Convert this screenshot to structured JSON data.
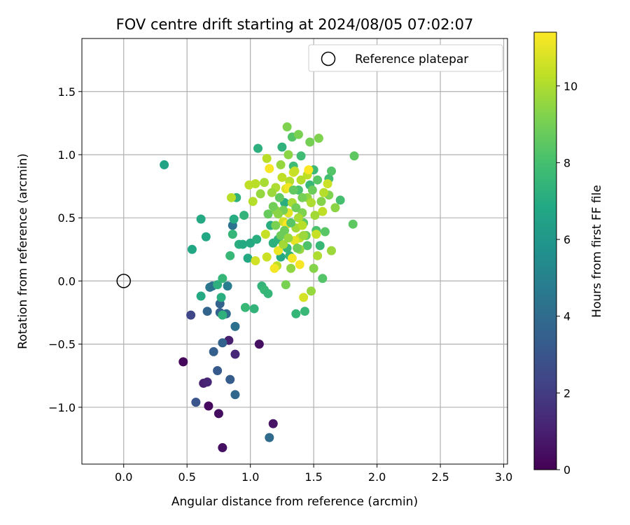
{
  "chart_data": {
    "type": "scatter",
    "title": "FOV centre drift starting at 2024/08/05 07:02:07",
    "xlabel": "Angular distance from reference (arcmin)",
    "ylabel": "Rotation from reference (arcmin)",
    "xlim": [
      -0.33,
      3.03
    ],
    "ylim": [
      -1.45,
      1.92
    ],
    "xticks": [
      0.0,
      0.5,
      1.0,
      1.5,
      2.0,
      2.5,
      3.0
    ],
    "xtick_labels": [
      "0.0",
      "0.5",
      "1.0",
      "1.5",
      "2.0",
      "2.5",
      "3.0"
    ],
    "yticks": [
      -1.0,
      -0.5,
      0.0,
      0.5,
      1.0,
      1.5
    ],
    "ytick_labels": [
      "−1.0",
      "−0.5",
      "0.0",
      "0.5",
      "1.0",
      "1.5"
    ],
    "grid": true,
    "colormap": "viridis",
    "colorbar": {
      "label": "Hours from first FF file",
      "min": 0,
      "max": 11.4,
      "ticks": [
        0,
        2,
        4,
        6,
        8,
        10
      ],
      "tick_labels": [
        "0",
        "2",
        "4",
        "6",
        "8",
        "10"
      ]
    },
    "legend": {
      "position": "top-right",
      "label": "Reference platepar"
    },
    "reference_point": [
      0.0,
      0.0
    ],
    "points": [
      {
        "x": 0.47,
        "y": -0.64,
        "c": 0.2
      },
      {
        "x": 0.67,
        "y": -0.99,
        "c": 0.3
      },
      {
        "x": 0.75,
        "y": -1.05,
        "c": 0.4
      },
      {
        "x": 0.78,
        "y": -1.32,
        "c": 0.5
      },
      {
        "x": 1.18,
        "y": -1.13,
        "c": 0.6
      },
      {
        "x": 1.07,
        "y": -0.5,
        "c": 0.5
      },
      {
        "x": 0.63,
        "y": -0.81,
        "c": 1.0
      },
      {
        "x": 0.66,
        "y": -0.8,
        "c": 1.2
      },
      {
        "x": 0.83,
        "y": -0.47,
        "c": 1.0
      },
      {
        "x": 0.88,
        "y": -0.58,
        "c": 1.3
      },
      {
        "x": 0.53,
        "y": -0.27,
        "c": 2.4
      },
      {
        "x": 0.57,
        "y": -0.96,
        "c": 3.0
      },
      {
        "x": 0.74,
        "y": -0.71,
        "c": 3.2
      },
      {
        "x": 0.71,
        "y": -0.56,
        "c": 3.4
      },
      {
        "x": 0.78,
        "y": -0.49,
        "c": 3.6
      },
      {
        "x": 0.84,
        "y": -0.78,
        "c": 3.3
      },
      {
        "x": 0.88,
        "y": -0.9,
        "c": 3.8
      },
      {
        "x": 1.15,
        "y": -1.24,
        "c": 3.9
      },
      {
        "x": 0.66,
        "y": -0.24,
        "c": 3.7
      },
      {
        "x": 0.76,
        "y": -0.25,
        "c": 3.5
      },
      {
        "x": 0.76,
        "y": -0.18,
        "c": 3.6
      },
      {
        "x": 0.81,
        "y": -0.26,
        "c": 3.9
      },
      {
        "x": 0.88,
        "y": -0.36,
        "c": 4.2
      },
      {
        "x": 0.68,
        "y": -0.05,
        "c": 4.5
      },
      {
        "x": 0.7,
        "y": -0.04,
        "c": 4.4
      },
      {
        "x": 0.82,
        "y": -0.04,
        "c": 4.8
      },
      {
        "x": 0.86,
        "y": 0.44,
        "c": 4.3
      },
      {
        "x": 0.32,
        "y": 0.92,
        "c": 6.6
      },
      {
        "x": 0.54,
        "y": 0.25,
        "c": 6.8
      },
      {
        "x": 0.61,
        "y": 0.49,
        "c": 6.9
      },
      {
        "x": 0.61,
        "y": -0.12,
        "c": 6.9
      },
      {
        "x": 0.65,
        "y": 0.35,
        "c": 6.8
      },
      {
        "x": 0.74,
        "y": -0.03,
        "c": 7.2
      },
      {
        "x": 0.77,
        "y": -0.13,
        "c": 7.1
      },
      {
        "x": 0.78,
        "y": -0.27,
        "c": 7.3
      },
      {
        "x": 0.78,
        "y": 0.02,
        "c": 7.5
      },
      {
        "x": 0.84,
        "y": 0.2,
        "c": 7.6
      },
      {
        "x": 0.86,
        "y": 0.37,
        "c": 7.5
      },
      {
        "x": 0.87,
        "y": 0.49,
        "c": 7.0
      },
      {
        "x": 0.89,
        "y": 0.66,
        "c": 7.3
      },
      {
        "x": 0.91,
        "y": 0.29,
        "c": 7.1
      },
      {
        "x": 0.94,
        "y": 0.29,
        "c": 6.9
      },
      {
        "x": 0.95,
        "y": 0.52,
        "c": 7.4
      },
      {
        "x": 0.96,
        "y": -0.21,
        "c": 7.6
      },
      {
        "x": 0.98,
        "y": 0.18,
        "c": 6.9
      },
      {
        "x": 1.0,
        "y": 0.3,
        "c": 6.9
      },
      {
        "x": 1.03,
        "y": -0.22,
        "c": 7.4
      },
      {
        "x": 1.05,
        "y": 0.33,
        "c": 7.1
      },
      {
        "x": 1.06,
        "y": 1.05,
        "c": 7.2
      },
      {
        "x": 1.09,
        "y": -0.04,
        "c": 7.4
      },
      {
        "x": 1.11,
        "y": -0.07,
        "c": 7.6
      },
      {
        "x": 1.14,
        "y": -0.1,
        "c": 7.5
      },
      {
        "x": 1.16,
        "y": 0.44,
        "c": 7.1
      },
      {
        "x": 1.18,
        "y": 0.3,
        "c": 7.2
      },
      {
        "x": 1.22,
        "y": 0.33,
        "c": 7.3
      },
      {
        "x": 1.24,
        "y": 0.19,
        "c": 6.9
      },
      {
        "x": 1.25,
        "y": 1.06,
        "c": 7.3
      },
      {
        "x": 1.27,
        "y": 0.62,
        "c": 7.1
      },
      {
        "x": 1.29,
        "y": 0.26,
        "c": 7.6
      },
      {
        "x": 1.31,
        "y": 0.2,
        "c": 7.5
      },
      {
        "x": 1.33,
        "y": 1.14,
        "c": 8.3
      },
      {
        "x": 1.34,
        "y": 0.91,
        "c": 7.8
      },
      {
        "x": 1.36,
        "y": -0.26,
        "c": 7.5
      },
      {
        "x": 1.38,
        "y": 0.72,
        "c": 8.1
      },
      {
        "x": 1.4,
        "y": 0.99,
        "c": 7.8
      },
      {
        "x": 1.43,
        "y": -0.24,
        "c": 7.6
      },
      {
        "x": 1.45,
        "y": 0.28,
        "c": 8.2
      },
      {
        "x": 1.47,
        "y": 0.76,
        "c": 7.6
      },
      {
        "x": 1.5,
        "y": 0.88,
        "c": 7.7
      },
      {
        "x": 1.52,
        "y": 0.4,
        "c": 8.1
      },
      {
        "x": 1.55,
        "y": 0.28,
        "c": 7.6
      },
      {
        "x": 1.57,
        "y": 0.02,
        "c": 8.3
      },
      {
        "x": 1.59,
        "y": 0.39,
        "c": 8.4
      },
      {
        "x": 1.62,
        "y": 0.81,
        "c": 7.9
      },
      {
        "x": 1.64,
        "y": 0.87,
        "c": 8.3
      },
      {
        "x": 1.71,
        "y": 0.64,
        "c": 8.0
      },
      {
        "x": 1.81,
        "y": 0.45,
        "c": 8.5
      },
      {
        "x": 1.82,
        "y": 0.99,
        "c": 8.5
      },
      {
        "x": 1.29,
        "y": 1.22,
        "c": 9.2
      },
      {
        "x": 1.38,
        "y": 1.16,
        "c": 9.1
      },
      {
        "x": 1.54,
        "y": 1.13,
        "c": 9.2
      },
      {
        "x": 1.47,
        "y": 1.1,
        "c": 9.0
      },
      {
        "x": 1.3,
        "y": 1.0,
        "c": 9.4
      },
      {
        "x": 1.24,
        "y": 0.92,
        "c": 9.6
      },
      {
        "x": 1.56,
        "y": 0.63,
        "c": 9.3
      },
      {
        "x": 1.67,
        "y": 0.58,
        "c": 9.4
      },
      {
        "x": 1.62,
        "y": 0.68,
        "c": 9.2
      },
      {
        "x": 1.45,
        "y": 0.66,
        "c": 9.5
      },
      {
        "x": 1.41,
        "y": 0.54,
        "c": 9.2
      },
      {
        "x": 1.2,
        "y": 0.56,
        "c": 9.4
      },
      {
        "x": 1.32,
        "y": 0.1,
        "c": 9.5
      },
      {
        "x": 1.28,
        "y": -0.03,
        "c": 9.1
      },
      {
        "x": 1.39,
        "y": 0.25,
        "c": 9.6
      },
      {
        "x": 1.5,
        "y": 0.1,
        "c": 9.3
      },
      {
        "x": 1.48,
        "y": -0.08,
        "c": 9.6
      },
      {
        "x": 1.64,
        "y": 0.24,
        "c": 9.7
      },
      {
        "x": 1.53,
        "y": 0.2,
        "c": 10.0
      },
      {
        "x": 1.36,
        "y": 0.42,
        "c": 9.8
      },
      {
        "x": 1.33,
        "y": 0.62,
        "c": 9.9
      },
      {
        "x": 1.31,
        "y": 0.79,
        "c": 10.1
      },
      {
        "x": 1.25,
        "y": 0.82,
        "c": 10.3
      },
      {
        "x": 1.2,
        "y": 0.74,
        "c": 10.0
      },
      {
        "x": 1.13,
        "y": 0.97,
        "c": 10.2
      },
      {
        "x": 1.02,
        "y": 0.63,
        "c": 10.1
      },
      {
        "x": 0.99,
        "y": 0.76,
        "c": 10.3
      },
      {
        "x": 1.04,
        "y": 0.77,
        "c": 10.2
      },
      {
        "x": 1.12,
        "y": 0.37,
        "c": 10.4
      },
      {
        "x": 1.21,
        "y": 0.12,
        "c": 10.3
      },
      {
        "x": 1.13,
        "y": 0.19,
        "c": 10.5
      },
      {
        "x": 1.04,
        "y": 0.16,
        "c": 10.6
      },
      {
        "x": 1.42,
        "y": -0.13,
        "c": 10.7
      },
      {
        "x": 1.52,
        "y": 0.37,
        "c": 10.4
      },
      {
        "x": 1.57,
        "y": 0.55,
        "c": 10.3
      },
      {
        "x": 1.58,
        "y": 0.7,
        "c": 10.1
      },
      {
        "x": 1.61,
        "y": 0.77,
        "c": 10.5
      },
      {
        "x": 1.45,
        "y": 0.84,
        "c": 10.3
      },
      {
        "x": 1.4,
        "y": 0.8,
        "c": 10.1
      },
      {
        "x": 1.39,
        "y": 0.34,
        "c": 10.4
      },
      {
        "x": 1.26,
        "y": 0.47,
        "c": 10.6
      },
      {
        "x": 1.28,
        "y": 0.73,
        "c": 10.8
      },
      {
        "x": 1.34,
        "y": 0.86,
        "c": 10.7
      },
      {
        "x": 1.3,
        "y": 0.54,
        "c": 10.9
      },
      {
        "x": 1.35,
        "y": 0.32,
        "c": 11.0
      },
      {
        "x": 1.22,
        "y": 0.24,
        "c": 11.1
      },
      {
        "x": 1.33,
        "y": 0.18,
        "c": 11.2
      },
      {
        "x": 1.39,
        "y": 0.13,
        "c": 11.3
      },
      {
        "x": 1.19,
        "y": 0.1,
        "c": 11.2
      },
      {
        "x": 1.29,
        "y": 0.45,
        "c": 11.4
      },
      {
        "x": 1.15,
        "y": 0.89,
        "c": 11.3
      },
      {
        "x": 1.46,
        "y": 0.88,
        "c": 11.4
      },
      {
        "x": 1.3,
        "y": 0.74,
        "c": 11.2
      },
      {
        "x": 1.14,
        "y": 0.53,
        "c": 8.7
      },
      {
        "x": 1.18,
        "y": 0.59,
        "c": 8.9
      },
      {
        "x": 1.23,
        "y": 0.66,
        "c": 8.6
      },
      {
        "x": 1.27,
        "y": 0.4,
        "c": 8.8
      },
      {
        "x": 1.32,
        "y": 0.46,
        "c": 8.4
      },
      {
        "x": 1.36,
        "y": 0.58,
        "c": 8.9
      },
      {
        "x": 1.42,
        "y": 0.46,
        "c": 8.5
      },
      {
        "x": 1.44,
        "y": 0.36,
        "c": 8.7
      },
      {
        "x": 1.49,
        "y": 0.72,
        "c": 8.8
      },
      {
        "x": 1.26,
        "y": 0.56,
        "c": 9.0
      },
      {
        "x": 1.34,
        "y": 0.72,
        "c": 8.6
      },
      {
        "x": 1.24,
        "y": 0.36,
        "c": 8.8
      },
      {
        "x": 1.2,
        "y": 0.44,
        "c": 9.1
      },
      {
        "x": 1.37,
        "y": 0.26,
        "c": 8.9
      },
      {
        "x": 1.41,
        "y": 0.66,
        "c": 9.0
      },
      {
        "x": 1.53,
        "y": 0.8,
        "c": 8.4
      },
      {
        "x": 1.08,
        "y": 0.69,
        "c": 9.6
      },
      {
        "x": 1.17,
        "y": 0.7,
        "c": 9.7
      },
      {
        "x": 1.11,
        "y": 0.78,
        "c": 9.9
      },
      {
        "x": 0.85,
        "y": 0.66,
        "c": 10.2
      },
      {
        "x": 1.26,
        "y": 0.29,
        "c": 9.8
      },
      {
        "x": 1.38,
        "y": 0.5,
        "c": 9.9
      },
      {
        "x": 1.51,
        "y": 0.52,
        "c": 9.8
      },
      {
        "x": 1.48,
        "y": 0.62,
        "c": 10.0
      },
      {
        "x": 1.42,
        "y": 0.36,
        "c": 9.7
      },
      {
        "x": 1.3,
        "y": 0.34,
        "c": 9.6
      },
      {
        "x": 1.22,
        "y": 0.53,
        "c": 9.4
      },
      {
        "x": 1.35,
        "y": 0.87,
        "c": 10.4
      },
      {
        "x": 1.41,
        "y": 0.44,
        "c": 10.2
      }
    ]
  }
}
